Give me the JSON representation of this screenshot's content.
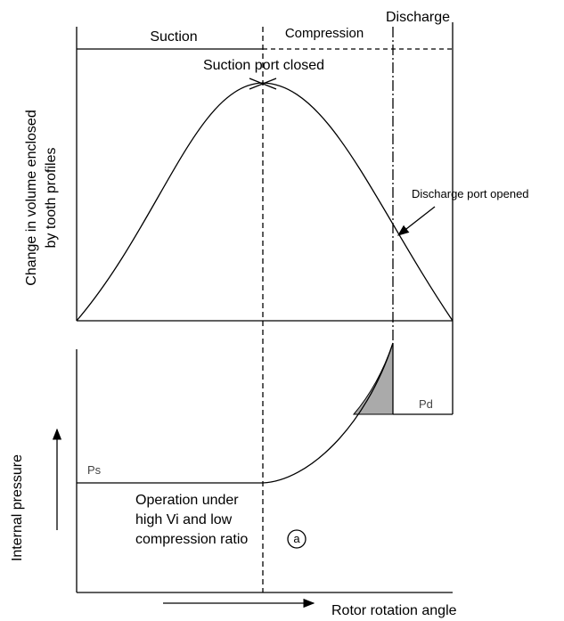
{
  "phases": {
    "suction": "Suction",
    "compression": "Compression",
    "discharge": "Discharge"
  },
  "annotations": {
    "suction_port": "Suction port closed",
    "discharge_port": "Discharge port opened",
    "operation": [
      "Operation under",
      "high Vi and low",
      "compression ratio"
    ],
    "marker": "a",
    "pd": "Pd",
    "ps": "Ps"
  },
  "axes": {
    "volume": [
      "Change in volume enclosed",
      "by tooth profiles"
    ],
    "pressure": "Internal pressure",
    "angle": "Rotor rotation angle"
  }
}
